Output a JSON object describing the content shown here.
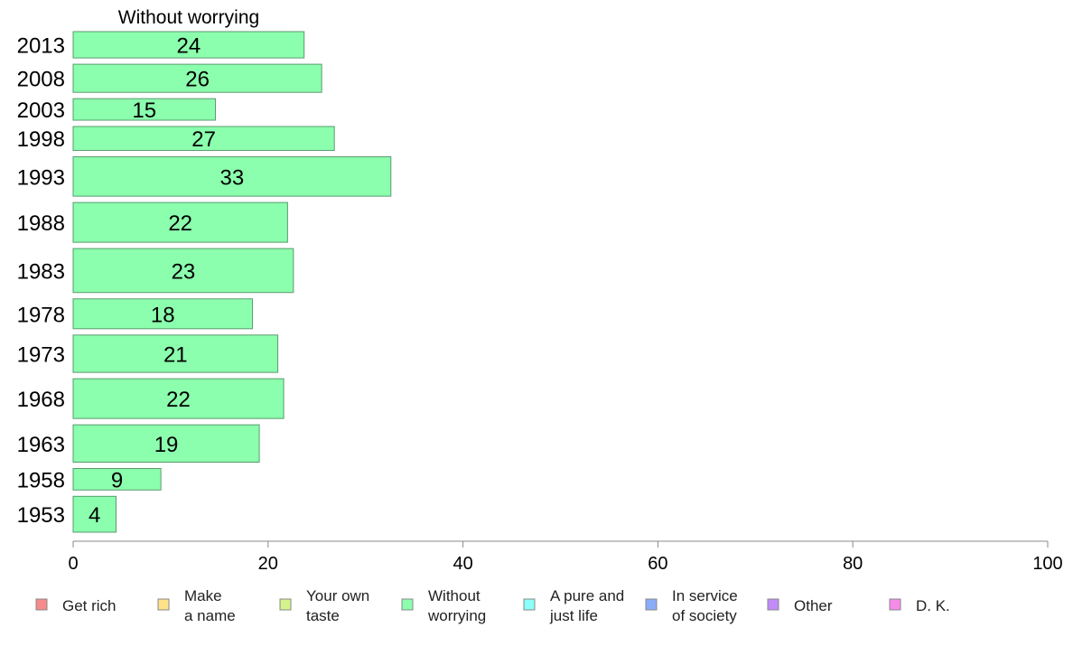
{
  "chart_data": {
    "type": "bar",
    "orientation": "horizontal",
    "title": "Without worrying",
    "categories": [
      "2013",
      "2008",
      "2003",
      "1998",
      "1993",
      "1988",
      "1983",
      "1978",
      "1973",
      "1968",
      "1963",
      "1958",
      "1953"
    ],
    "values": [
      24,
      26,
      15,
      27,
      33,
      22,
      23,
      18,
      21,
      22,
      19,
      9,
      4
    ],
    "bar_value_precise": [
      23.7,
      25.5,
      14.6,
      26.8,
      32.6,
      22.0,
      22.6,
      18.4,
      21.0,
      21.6,
      19.1,
      9.0,
      4.4
    ],
    "bar_thickness_relative": [
      0.88,
      0.94,
      0.72,
      0.8,
      1.32,
      1.33,
      1.47,
      1.0,
      1.25,
      1.33,
      1.25,
      0.72,
      1.2
    ],
    "xlim": [
      0,
      100
    ],
    "xticks": [
      "0",
      "20",
      "40",
      "60",
      "80",
      "100"
    ],
    "grid": false,
    "bar_color": "#8bffad",
    "bar_edge_color": "#5a9a6f",
    "legend_position": "bottom",
    "legend": [
      {
        "lines": [
          "Get rich"
        ],
        "color": "#f68b8b"
      },
      {
        "lines": [
          "Make",
          "a name"
        ],
        "color": "#fde28a"
      },
      {
        "lines": [
          "Your own",
          "taste"
        ],
        "color": "#d4f48b"
      },
      {
        "lines": [
          "Without",
          "worrying"
        ],
        "color": "#8bffad"
      },
      {
        "lines": [
          "A pure and",
          "just life"
        ],
        "color": "#8bfff8"
      },
      {
        "lines": [
          "In service",
          "of society"
        ],
        "color": "#8bacf7"
      },
      {
        "lines": [
          "Other"
        ],
        "color": "#c28bf9"
      },
      {
        "lines": [
          "D. K."
        ],
        "color": "#f68be9"
      }
    ]
  }
}
